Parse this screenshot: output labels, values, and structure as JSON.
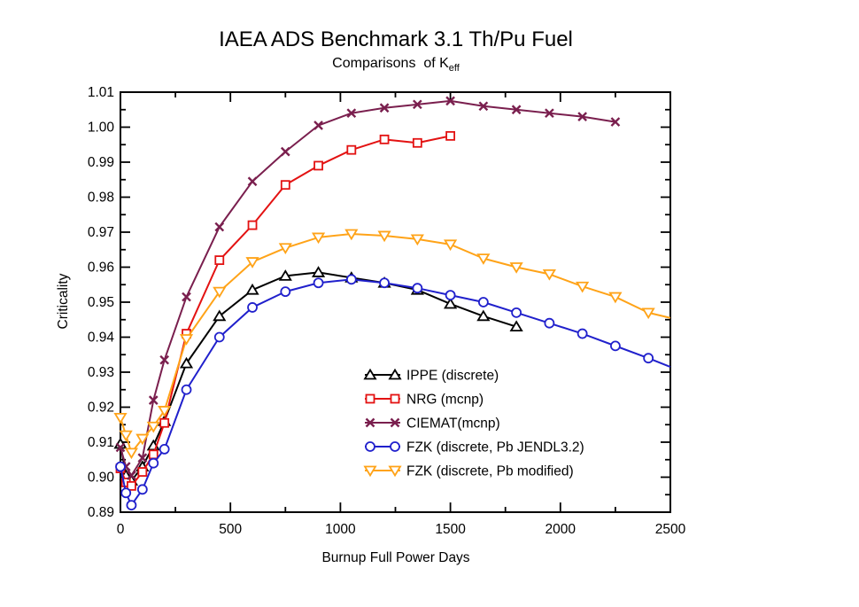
{
  "page": {
    "background": "#ffffff"
  },
  "chart_data": {
    "type": "line",
    "title": "IAEA ADS Benchmark 3.1 Th/Pu Fuel",
    "subtitle": {
      "text": "Comparisons  of K",
      "subscript": "eff"
    },
    "xlabel": "Burnup Full Power Days",
    "ylabel": "Criticality",
    "xlim": [
      0,
      2500
    ],
    "ylim": [
      0.89,
      1.01
    ],
    "x_major_ticks": [
      0,
      500,
      1000,
      1500,
      2000,
      2500
    ],
    "x_minor_ticks": [
      250,
      750,
      1250,
      1750,
      2250
    ],
    "y_tick_start": 0.89,
    "y_minor_step": 0.005,
    "y_major_every": 2,
    "y_tick_count": 25,
    "grid": false,
    "axis_color": "#000000",
    "legend_position": "inside-lower-right",
    "series": [
      {
        "name": "IPPE (discrete)",
        "color": "#000000",
        "marker": "triangle-up",
        "points": [
          [
            0,
            0.9095
          ],
          [
            25,
            0.9005
          ],
          [
            50,
            0.899
          ],
          [
            100,
            0.903
          ],
          [
            150,
            0.909
          ],
          [
            200,
            0.916
          ],
          [
            300,
            0.9325
          ],
          [
            450,
            0.946
          ],
          [
            600,
            0.9535
          ],
          [
            750,
            0.9575
          ],
          [
            900,
            0.9585
          ],
          [
            1050,
            0.957
          ],
          [
            1200,
            0.9555
          ],
          [
            1350,
            0.9535
          ],
          [
            1500,
            0.9495
          ],
          [
            1650,
            0.946
          ],
          [
            1800,
            0.943
          ]
        ]
      },
      {
        "name": "NRG (mcnp)",
        "color": "#e31212",
        "marker": "square",
        "points": [
          [
            0,
            0.9025
          ],
          [
            25,
            0.8985
          ],
          [
            50,
            0.8975
          ],
          [
            100,
            0.9015
          ],
          [
            150,
            0.9065
          ],
          [
            200,
            0.9155
          ],
          [
            300,
            0.941
          ],
          [
            450,
            0.962
          ],
          [
            600,
            0.972
          ],
          [
            750,
            0.9835
          ],
          [
            900,
            0.989
          ],
          [
            1050,
            0.9935
          ],
          [
            1200,
            0.9965
          ],
          [
            1350,
            0.9955
          ],
          [
            1500,
            0.9975
          ]
        ]
      },
      {
        "name": "CIEMAT(mcnp)",
        "color": "#7a1f4e",
        "marker": "x",
        "points": [
          [
            0,
            0.9085
          ],
          [
            25,
            0.903
          ],
          [
            50,
            0.9005
          ],
          [
            100,
            0.9055
          ],
          [
            150,
            0.922
          ],
          [
            200,
            0.9335
          ],
          [
            300,
            0.9515
          ],
          [
            450,
            0.9715
          ],
          [
            600,
            0.9845
          ],
          [
            750,
            0.993
          ],
          [
            900,
            1.0005
          ],
          [
            1050,
            1.004
          ],
          [
            1200,
            1.0055
          ],
          [
            1350,
            1.0065
          ],
          [
            1500,
            1.0075
          ],
          [
            1650,
            1.006
          ],
          [
            1800,
            1.005
          ],
          [
            1950,
            1.004
          ],
          [
            2100,
            1.003
          ],
          [
            2250,
            1.0015
          ]
        ]
      },
      {
        "name": "FZK (discrete, Pb JENDL3.2)",
        "color": "#2020cc",
        "marker": "circle",
        "points": [
          [
            0,
            0.903
          ],
          [
            25,
            0.8955
          ],
          [
            50,
            0.892
          ],
          [
            100,
            0.8965
          ],
          [
            150,
            0.904
          ],
          [
            200,
            0.908
          ],
          [
            300,
            0.925
          ],
          [
            450,
            0.94
          ],
          [
            600,
            0.9485
          ],
          [
            750,
            0.953
          ],
          [
            900,
            0.9555
          ],
          [
            1050,
            0.9565
          ],
          [
            1200,
            0.9555
          ],
          [
            1350,
            0.954
          ],
          [
            1500,
            0.952
          ],
          [
            1650,
            0.95
          ],
          [
            1800,
            0.947
          ],
          [
            1950,
            0.944
          ],
          [
            2100,
            0.941
          ],
          [
            2250,
            0.9375
          ],
          [
            2400,
            0.934
          ]
        ],
        "tail": [
          2500,
          0.9315
        ]
      },
      {
        "name": "FZK (discrete, Pb modified)",
        "color": "#ffa318",
        "marker": "triangle-down",
        "points": [
          [
            0,
            0.917
          ],
          [
            25,
            0.912
          ],
          [
            50,
            0.907
          ],
          [
            100,
            0.911
          ],
          [
            150,
            0.9145
          ],
          [
            200,
            0.919
          ],
          [
            300,
            0.9395
          ],
          [
            450,
            0.953
          ],
          [
            600,
            0.9615
          ],
          [
            750,
            0.9655
          ],
          [
            900,
            0.9685
          ],
          [
            1050,
            0.9695
          ],
          [
            1200,
            0.969
          ],
          [
            1350,
            0.968
          ],
          [
            1500,
            0.9665
          ],
          [
            1650,
            0.9625
          ],
          [
            1800,
            0.96
          ],
          [
            1950,
            0.958
          ],
          [
            2100,
            0.9545
          ],
          [
            2250,
            0.9515
          ],
          [
            2400,
            0.947
          ]
        ],
        "tail": [
          2500,
          0.9455
        ]
      }
    ]
  }
}
